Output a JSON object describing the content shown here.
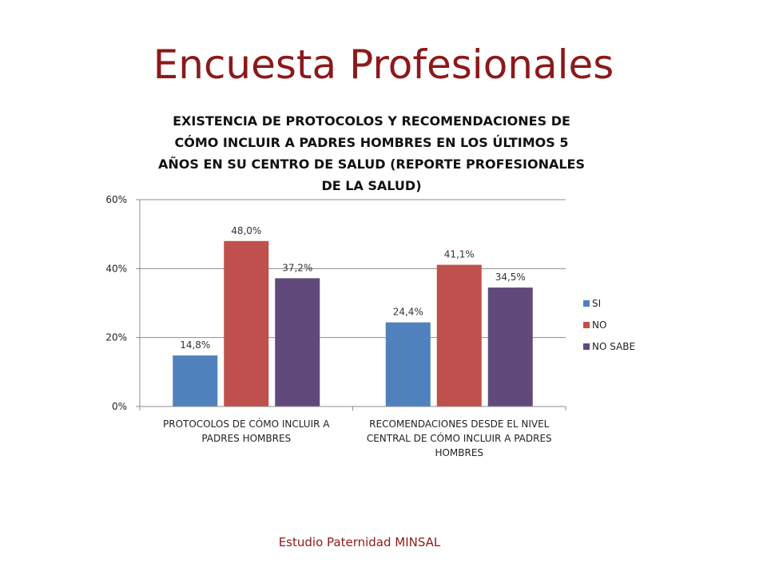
{
  "slide": {
    "title": "Encuesta Profesionales",
    "footer": "Estudio Paternidad MINSAL"
  },
  "chart_data": {
    "type": "bar",
    "title": "EXISTENCIA DE PROTOCOLOS Y RECOMENDACIONES DE CÓMO INCLUIR A PADRES HOMBRES EN LOS ÚLTIMOS 5 AÑOS EN SU CENTRO DE SALUD (REPORTE PROFESIONALES DE LA SALUD)",
    "categories": [
      [
        "PROTOCOLOS DE CÓMO INCLUIR A",
        "PADRES HOMBRES"
      ],
      [
        "RECOMENDACIONES DESDE EL NIVEL",
        "CENTRAL DE CÓMO INCLUIR A PADRES",
        "HOMBRES"
      ]
    ],
    "series": [
      {
        "name": "SI",
        "color": "#4f81bd",
        "values": [
          14.8,
          24.4
        ],
        "labels": [
          "14,8%",
          "24,4%"
        ]
      },
      {
        "name": "NO",
        "color": "#c0504d",
        "values": [
          48.0,
          41.1
        ],
        "labels": [
          "48,0%",
          "41,1%"
        ]
      },
      {
        "name": "NO SABE",
        "color": "#604a7b",
        "values": [
          37.2,
          34.5
        ],
        "labels": [
          "37,2%",
          "34,5%"
        ]
      }
    ],
    "ylim": [
      0,
      60
    ],
    "yticks": [
      0,
      20,
      40,
      60
    ],
    "ytick_labels": [
      "0%",
      "20%",
      "40%",
      "60%"
    ],
    "grid": true,
    "legend": "right"
  }
}
